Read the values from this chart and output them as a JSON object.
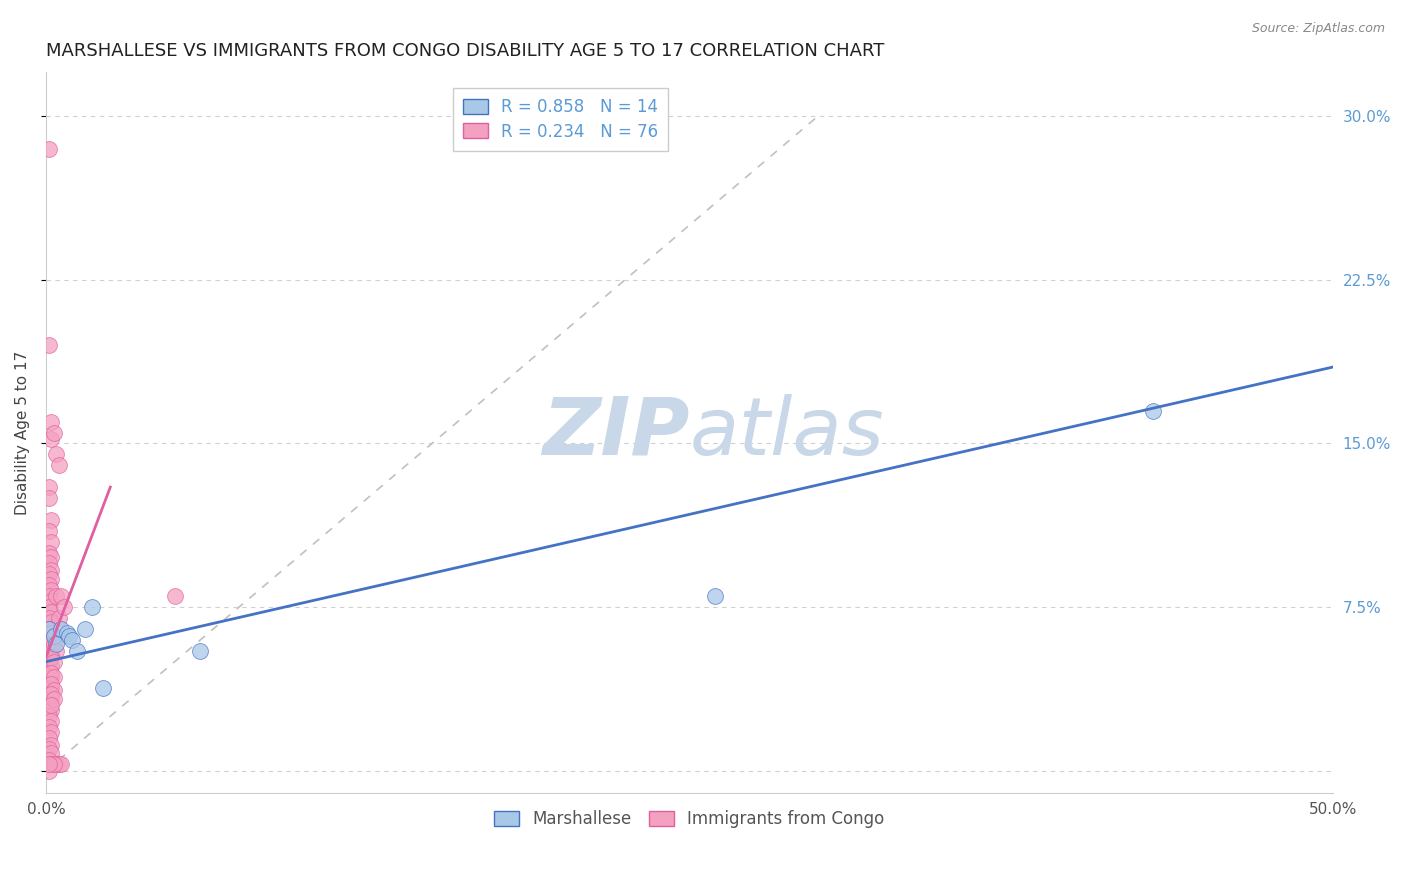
{
  "title": "MARSHALLESE VS IMMIGRANTS FROM CONGO DISABILITY AGE 5 TO 17 CORRELATION CHART",
  "source": "Source: ZipAtlas.com",
  "ylabel": "Disability Age 5 to 17",
  "xlim": [
    0.0,
    0.5
  ],
  "ylim": [
    -0.01,
    0.32
  ],
  "yticks": [
    0.0,
    0.075,
    0.15,
    0.225,
    0.3
  ],
  "ytick_labels_right": [
    "",
    "7.5%",
    "15.0%",
    "22.5%",
    "30.0%"
  ],
  "xtick_positions": [
    0.0,
    0.5
  ],
  "xtick_labels": [
    "0.0%",
    "50.0%"
  ],
  "legend_labels_bottom": [
    "Marshallese",
    "Immigrants from Congo"
  ],
  "marshallese_scatter": [
    [
      0.001,
      0.065
    ],
    [
      0.003,
      0.062
    ],
    [
      0.004,
      0.058
    ],
    [
      0.006,
      0.065
    ],
    [
      0.008,
      0.063
    ],
    [
      0.009,
      0.062
    ],
    [
      0.01,
      0.06
    ],
    [
      0.012,
      0.055
    ],
    [
      0.015,
      0.065
    ],
    [
      0.018,
      0.075
    ],
    [
      0.022,
      0.038
    ],
    [
      0.06,
      0.055
    ],
    [
      0.26,
      0.08
    ],
    [
      0.43,
      0.165
    ]
  ],
  "congo_scatter": [
    [
      0.001,
      0.285
    ],
    [
      0.001,
      0.195
    ],
    [
      0.002,
      0.16
    ],
    [
      0.002,
      0.152
    ],
    [
      0.001,
      0.13
    ],
    [
      0.001,
      0.125
    ],
    [
      0.002,
      0.115
    ],
    [
      0.001,
      0.11
    ],
    [
      0.002,
      0.105
    ],
    [
      0.001,
      0.1
    ],
    [
      0.002,
      0.098
    ],
    [
      0.001,
      0.095
    ],
    [
      0.002,
      0.092
    ],
    [
      0.001,
      0.09
    ],
    [
      0.002,
      0.088
    ],
    [
      0.001,
      0.085
    ],
    [
      0.002,
      0.083
    ],
    [
      0.001,
      0.08
    ],
    [
      0.002,
      0.078
    ],
    [
      0.001,
      0.075
    ],
    [
      0.002,
      0.073
    ],
    [
      0.001,
      0.07
    ],
    [
      0.002,
      0.068
    ],
    [
      0.001,
      0.065
    ],
    [
      0.002,
      0.063
    ],
    [
      0.001,
      0.06
    ],
    [
      0.002,
      0.058
    ],
    [
      0.001,
      0.055
    ],
    [
      0.002,
      0.053
    ],
    [
      0.001,
      0.05
    ],
    [
      0.002,
      0.048
    ],
    [
      0.001,
      0.045
    ],
    [
      0.002,
      0.043
    ],
    [
      0.001,
      0.04
    ],
    [
      0.002,
      0.038
    ],
    [
      0.001,
      0.035
    ],
    [
      0.002,
      0.033
    ],
    [
      0.001,
      0.03
    ],
    [
      0.002,
      0.028
    ],
    [
      0.001,
      0.025
    ],
    [
      0.002,
      0.023
    ],
    [
      0.001,
      0.02
    ],
    [
      0.002,
      0.018
    ],
    [
      0.001,
      0.015
    ],
    [
      0.002,
      0.012
    ],
    [
      0.001,
      0.01
    ],
    [
      0.002,
      0.008
    ],
    [
      0.001,
      0.005
    ],
    [
      0.002,
      0.003
    ],
    [
      0.001,
      0.0
    ],
    [
      0.003,
      0.155
    ],
    [
      0.004,
      0.145
    ],
    [
      0.005,
      0.14
    ],
    [
      0.004,
      0.08
    ],
    [
      0.005,
      0.07
    ],
    [
      0.006,
      0.08
    ],
    [
      0.007,
      0.075
    ],
    [
      0.05,
      0.08
    ],
    [
      0.004,
      0.003
    ],
    [
      0.005,
      0.003
    ],
    [
      0.006,
      0.003
    ],
    [
      0.003,
      0.003
    ],
    [
      0.001,
      0.003
    ],
    [
      0.002,
      0.06
    ],
    [
      0.003,
      0.058
    ],
    [
      0.004,
      0.055
    ],
    [
      0.002,
      0.052
    ],
    [
      0.003,
      0.05
    ],
    [
      0.002,
      0.045
    ],
    [
      0.003,
      0.043
    ],
    [
      0.002,
      0.04
    ],
    [
      0.003,
      0.037
    ],
    [
      0.002,
      0.035
    ],
    [
      0.003,
      0.033
    ],
    [
      0.002,
      0.03
    ]
  ],
  "marshallese_line": {
    "x0": 0.0,
    "y0": 0.05,
    "x1": 0.5,
    "y1": 0.185
  },
  "congo_line": {
    "x0": 0.0,
    "y0": 0.052,
    "x1": 0.025,
    "y1": 0.13
  },
  "marshallese_line_color": "#4472c4",
  "congo_line_color": "#e05fa0",
  "scatter_marshallese_color": "#a8c8e8",
  "scatter_congo_color": "#f4a0c0",
  "watermark_zip": "ZIP",
  "watermark_atlas": "atlas",
  "watermark_color": "#c8d8e8",
  "background_color": "#ffffff",
  "grid_color": "#d0d0d0",
  "title_fontsize": 13,
  "axis_label_fontsize": 11,
  "tick_fontsize": 11
}
